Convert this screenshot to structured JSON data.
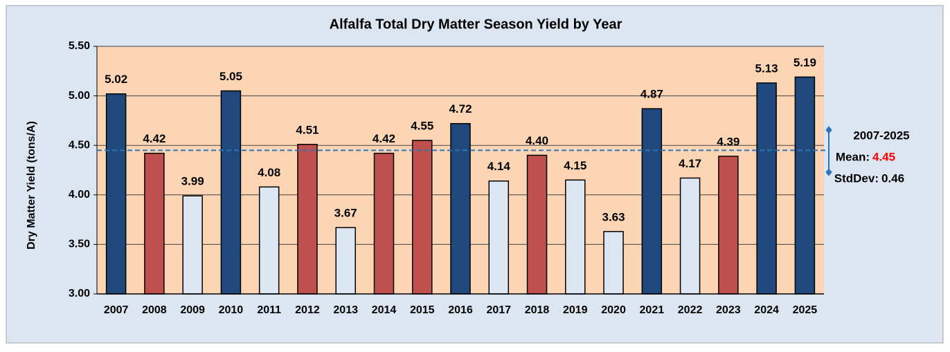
{
  "chart_data": {
    "type": "bar",
    "title": "Alfalfa Total Dry Matter Season Yield by Year",
    "y_label": "Dry Matter Yield (tons/A)",
    "categories": [
      "2007",
      "2008",
      "2009",
      "2010",
      "2011",
      "2012",
      "2013",
      "2014",
      "2015",
      "2016",
      "2017",
      "2018",
      "2019",
      "2020",
      "2021",
      "2022",
      "2023",
      "2024",
      "2025"
    ],
    "values": [
      5.02,
      4.42,
      3.99,
      5.05,
      4.08,
      4.51,
      3.67,
      4.42,
      4.55,
      4.72,
      4.14,
      4.4,
      4.15,
      3.63,
      4.87,
      4.17,
      4.39,
      5.13,
      5.19
    ],
    "value_labels": [
      "5.02",
      "4.42",
      "3.99",
      "5.05",
      "4.08",
      "4.51",
      "3.67",
      "4.42",
      "4.55",
      "4.72",
      "4.14",
      "4.40",
      "4.15",
      "3.63",
      "4.87",
      "4.17",
      "4.39",
      "5.13",
      "5.19"
    ],
    "colors": [
      "#1f497d",
      "#c0504d",
      "#dce6f2",
      "#1f497d",
      "#dce6f2",
      "#c0504d",
      "#dce6f2",
      "#c0504d",
      "#c0504d",
      "#1f497d",
      "#dce6f2",
      "#c0504d",
      "#dce6f2",
      "#dce6f2",
      "#1f497d",
      "#dce6f2",
      "#c0504d",
      "#1f497d",
      "#1f497d"
    ],
    "ylim": [
      3,
      5.5
    ],
    "yticks": [
      {
        "value": 3,
        "label": "3.00"
      },
      {
        "value": 3.5,
        "label": "3.50"
      },
      {
        "value": 4,
        "label": "4.00"
      },
      {
        "value": 4.5,
        "label": "4.50"
      },
      {
        "value": 5,
        "label": "5.00"
      },
      {
        "value": 5.5,
        "label": "5.50"
      }
    ],
    "grid": true,
    "mean": {
      "period": "2007-2025",
      "label": "Mean:",
      "value": 4.45,
      "std_label": "StdDev:",
      "std": 0.46,
      "color": "#2e75b6"
    }
  }
}
